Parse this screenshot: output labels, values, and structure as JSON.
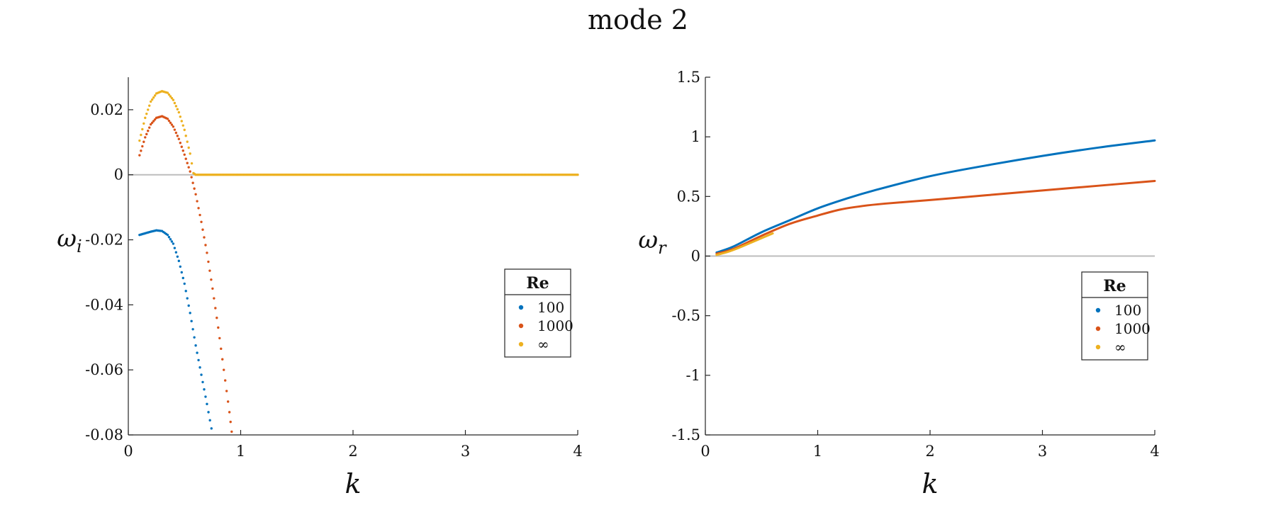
{
  "figure": {
    "title": "mode 2"
  },
  "colors": {
    "Re100": "#0072BD",
    "Re1000": "#D95319",
    "ReInf": "#EDB120",
    "zero_line": "#bdbdbd",
    "axis": "#262626"
  },
  "chart_data": [
    {
      "type": "scatter",
      "panel": "left",
      "xlabel": "k",
      "ylabel_main": "ω",
      "ylabel_sub": "i",
      "xlim": [
        0,
        4
      ],
      "ylim": [
        -0.08,
        0.03
      ],
      "xticks": [
        0,
        1,
        2,
        3,
        4
      ],
      "xtick_labels": [
        "0",
        "1",
        "2",
        "3",
        "4"
      ],
      "yticks": [
        -0.08,
        -0.06,
        -0.04,
        -0.02,
        0,
        0.02
      ],
      "ytick_labels": [
        "-0.08",
        "-0.06",
        "-0.04",
        "-0.02",
        "0",
        "0.02"
      ],
      "zero_line": 0,
      "legend": {
        "title": "Re",
        "entries": [
          "100",
          "1000",
          "∞"
        ],
        "placement": "right"
      },
      "series": [
        {
          "name": "100",
          "color": "#0072BD",
          "x": [
            0.1,
            0.2,
            0.25,
            0.3,
            0.35,
            0.4,
            0.45,
            0.5,
            0.55,
            0.6,
            0.65,
            0.7,
            0.74
          ],
          "y": [
            -0.0185,
            -0.0175,
            -0.0171,
            -0.0173,
            -0.0185,
            -0.0212,
            -0.0265,
            -0.0335,
            -0.0425,
            -0.0525,
            -0.0615,
            -0.0705,
            -0.078
          ]
        },
        {
          "name": "1000",
          "color": "#D95319",
          "x": [
            0.1,
            0.15,
            0.2,
            0.25,
            0.3,
            0.35,
            0.4,
            0.45,
            0.5,
            0.55,
            0.6,
            0.65,
            0.7,
            0.75,
            0.8,
            0.85,
            0.9,
            0.92
          ],
          "y": [
            0.006,
            0.0115,
            0.0155,
            0.0175,
            0.018,
            0.0172,
            0.0148,
            0.011,
            0.0062,
            0.001,
            -0.006,
            -0.0145,
            -0.024,
            -0.035,
            -0.047,
            -0.06,
            -0.073,
            -0.079
          ]
        },
        {
          "name": "∞",
          "color": "#EDB120",
          "x": [
            0.1,
            0.15,
            0.2,
            0.25,
            0.3,
            0.35,
            0.4,
            0.45,
            0.5,
            0.55,
            0.58,
            0.6,
            1,
            2,
            3,
            4
          ],
          "y": [
            0.0105,
            0.0175,
            0.0225,
            0.025,
            0.0257,
            0.0252,
            0.023,
            0.0192,
            0.0138,
            0.0065,
            0.0005,
            0,
            0,
            0,
            0,
            0
          ]
        }
      ]
    },
    {
      "type": "line",
      "panel": "right",
      "xlabel": "k",
      "ylabel_main": "ω",
      "ylabel_sub": "r",
      "xlim": [
        0,
        4
      ],
      "ylim": [
        -1.5,
        1.5
      ],
      "xticks": [
        0,
        1,
        2,
        3,
        4
      ],
      "xtick_labels": [
        "0",
        "1",
        "2",
        "3",
        "4"
      ],
      "yticks": [
        -1.5,
        -1,
        -0.5,
        0,
        0.5,
        1,
        1.5
      ],
      "ytick_labels": [
        "-1.5",
        "-1",
        "-0.5",
        "0",
        "0.5",
        "1",
        "1.5"
      ],
      "zero_line": 0,
      "legend": {
        "title": "Re",
        "entries": [
          "100",
          "1000",
          "∞"
        ],
        "placement": "right"
      },
      "series": [
        {
          "name": "100",
          "color": "#0072BD",
          "x": [
            0.1,
            0.25,
            0.5,
            0.75,
            1.0,
            1.25,
            1.5,
            2.0,
            2.5,
            3.0,
            3.5,
            4.0
          ],
          "y": [
            0.03,
            0.08,
            0.2,
            0.3,
            0.4,
            0.48,
            0.55,
            0.67,
            0.76,
            0.84,
            0.91,
            0.97
          ]
        },
        {
          "name": "1000",
          "color": "#D95319",
          "x": [
            0.1,
            0.25,
            0.5,
            0.75,
            1.0,
            1.2,
            1.4,
            1.6,
            2.0,
            2.5,
            3.0,
            3.5,
            4.0
          ],
          "y": [
            0.02,
            0.06,
            0.17,
            0.27,
            0.34,
            0.39,
            0.42,
            0.44,
            0.47,
            0.51,
            0.55,
            0.59,
            0.63
          ]
        },
        {
          "name": "∞",
          "color": "#EDB120",
          "x": [
            0.1,
            0.2,
            0.3,
            0.4,
            0.5,
            0.6
          ],
          "y": [
            0.01,
            0.035,
            0.07,
            0.11,
            0.15,
            0.19
          ]
        }
      ]
    }
  ]
}
